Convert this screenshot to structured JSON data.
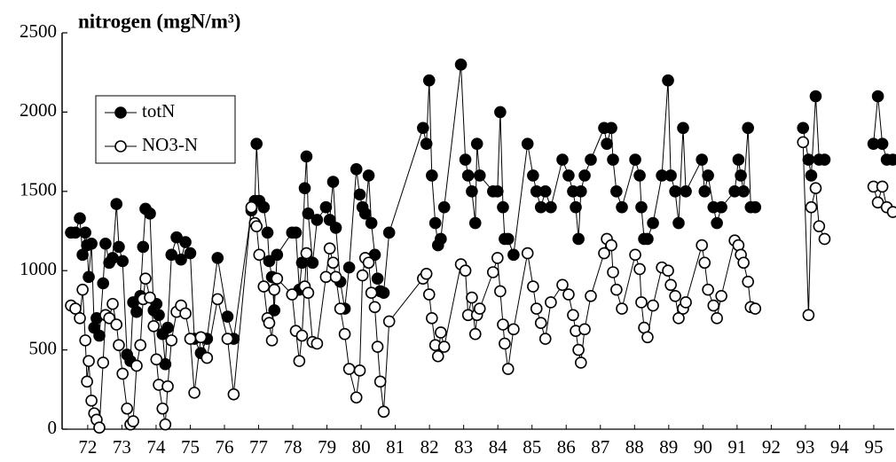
{
  "chart_data": {
    "type": "line",
    "title": "nitrogen (mgN/m³)",
    "x": [
      71.51,
      71.64,
      71.77,
      71.85,
      71.93,
      71.98,
      72.03,
      72.11,
      72.19,
      72.26,
      72.34,
      72.45,
      72.52,
      72.63,
      72.73,
      72.84,
      72.91,
      73.02,
      73.15,
      73.25,
      73.33,
      73.43,
      73.54,
      73.62,
      73.69,
      73.82,
      73.93,
      74.01,
      74.08,
      74.19,
      74.27,
      74.34,
      74.45,
      74.6,
      74.73,
      74.86,
      75.0,
      75.12,
      75.31,
      75.49,
      75.8,
      76.09,
      76.27,
      76.79,
      76.89,
      76.94,
      77.02,
      77.15,
      77.26,
      77.31,
      77.39,
      77.46,
      77.54,
      77.98,
      78.09,
      78.19,
      78.27,
      78.35,
      78.4,
      78.45,
      78.58,
      78.71,
      78.97,
      79.08,
      79.18,
      79.26,
      79.39,
      79.52,
      79.65,
      79.86,
      79.96,
      80.04,
      80.12,
      80.22,
      80.3,
      80.4,
      80.48,
      80.56,
      80.66,
      80.82,
      81.81,
      81.91,
      81.99,
      82.07,
      82.17,
      82.25,
      82.33,
      82.43,
      82.92,
      83.05,
      83.13,
      83.24,
      83.34,
      83.39,
      83.47,
      83.86,
      83.99,
      84.07,
      84.15,
      84.2,
      84.3,
      84.46,
      84.87,
      85.03,
      85.13,
      85.26,
      85.39,
      85.55,
      85.89,
      86.07,
      86.2,
      86.28,
      86.36,
      86.43,
      86.54,
      86.72,
      87.11,
      87.19,
      87.32,
      87.37,
      87.47,
      87.63,
      88.02,
      88.15,
      88.2,
      88.28,
      88.38,
      88.54,
      88.8,
      88.98,
      89.06,
      89.19,
      89.29,
      89.42,
      89.5,
      89.97,
      90.05,
      90.15,
      90.31,
      90.41,
      90.54,
      90.93,
      91.04,
      91.11,
      91.19,
      91.32,
      91.4,
      91.53,
      92.2,
      92.93,
      93.09,
      93.17,
      93.3,
      93.4,
      93.56,
      94.3,
      94.99,
      95.12,
      95.25,
      95.38,
      95.56
    ],
    "series": [
      {
        "name": "totN",
        "color": "#000000",
        "filled": true,
        "values": [
          1240,
          1240,
          1330,
          1100,
          1240,
          1160,
          960,
          1170,
          640,
          700,
          590,
          920,
          1170,
          1050,
          1080,
          1420,
          1150,
          1060,
          470,
          430,
          800,
          740,
          840,
          1150,
          1390,
          1360,
          750,
          790,
          720,
          600,
          410,
          640,
          1100,
          1210,
          1070,
          1180,
          1110,
          570,
          480,
          570,
          1080,
          710,
          570,
          1380,
          1440,
          1800,
          1440,
          1400,
          1240,
          1060,
          960,
          750,
          1100,
          1240,
          1240,
          880,
          1050,
          1520,
          1720,
          1360,
          1050,
          1320,
          1400,
          1320,
          1560,
          1270,
          930,
          760,
          1020,
          1640,
          1480,
          1400,
          1360,
          1600,
          1300,
          1100,
          950,
          870,
          860,
          1240,
          1900,
          1800,
          2200,
          1600,
          1300,
          1160,
          1200,
          1400,
          2300,
          1700,
          1600,
          1500,
          1300,
          1800,
          1600,
          1500,
          1500,
          2000,
          1400,
          1200,
          1200,
          1100,
          1800,
          1600,
          1500,
          1400,
          1500,
          1400,
          1700,
          1600,
          1500,
          1400,
          1200,
          1500,
          1600,
          1700,
          1900,
          1800,
          1900,
          1700,
          1500,
          1400,
          1700,
          1600,
          1400,
          1200,
          1200,
          1300,
          1600,
          2200,
          1600,
          1500,
          1300,
          1900,
          1500,
          1700,
          1500,
          1600,
          1400,
          1300,
          1400,
          1500,
          1700,
          1600,
          1500,
          1900,
          1400,
          1400,
          null,
          1900,
          1700,
          1600,
          2100,
          1700,
          1700,
          null,
          1800,
          2100,
          1800,
          1700,
          1700
        ]
      },
      {
        "name": "NO3-N",
        "color": "#000000",
        "filled": false,
        "values": [
          780,
          760,
          700,
          880,
          560,
          300,
          430,
          180,
          100,
          60,
          10,
          420,
          720,
          700,
          790,
          660,
          530,
          350,
          130,
          30,
          50,
          400,
          530,
          820,
          950,
          830,
          650,
          440,
          280,
          130,
          30,
          270,
          560,
          740,
          780,
          730,
          570,
          230,
          580,
          450,
          820,
          570,
          220,
          1400,
          1300,
          1280,
          1100,
          900,
          700,
          670,
          560,
          880,
          950,
          850,
          620,
          430,
          590,
          900,
          1110,
          860,
          550,
          540,
          960,
          1140,
          1050,
          960,
          760,
          600,
          380,
          200,
          370,
          970,
          1080,
          1050,
          860,
          770,
          520,
          300,
          110,
          680,
          950,
          980,
          850,
          700,
          530,
          460,
          610,
          520,
          1040,
          1000,
          720,
          830,
          600,
          720,
          760,
          990,
          1080,
          870,
          660,
          540,
          380,
          630,
          1110,
          900,
          760,
          670,
          570,
          800,
          910,
          850,
          720,
          620,
          500,
          420,
          630,
          840,
          1110,
          1200,
          1160,
          990,
          880,
          760,
          1100,
          1010,
          800,
          640,
          580,
          780,
          1020,
          1000,
          910,
          840,
          700,
          760,
          800,
          1160,
          1050,
          880,
          780,
          700,
          840,
          1190,
          1160,
          1100,
          1050,
          930,
          770,
          760,
          null,
          1810,
          720,
          1400,
          1520,
          1280,
          1200,
          null,
          1530,
          1430,
          1530,
          1400,
          1370
        ]
      }
    ],
    "xlim": [
      71.25,
      95.65
    ],
    "xticks": [
      72,
      73,
      74,
      75,
      76,
      77,
      78,
      79,
      80,
      81,
      82,
      83,
      84,
      85,
      86,
      87,
      88,
      89,
      90,
      91,
      92,
      93,
      94,
      95
    ],
    "ylim": [
      0,
      2500
    ],
    "yticks": [
      0,
      500,
      1000,
      1500,
      2000,
      2500
    ],
    "legend": "upper left"
  }
}
